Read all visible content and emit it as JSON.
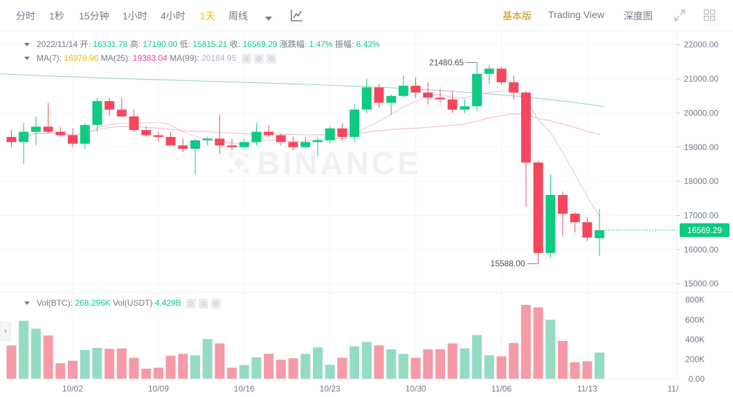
{
  "toolbar": {
    "intervals": [
      {
        "label": "分时",
        "active": false
      },
      {
        "label": "1秒",
        "active": false
      },
      {
        "label": "15分钟",
        "active": false
      },
      {
        "label": "1小时",
        "active": false
      },
      {
        "label": "4小时",
        "active": false
      },
      {
        "label": "1天",
        "active": true
      },
      {
        "label": "周线",
        "active": false
      }
    ],
    "views": [
      {
        "label": "基本版",
        "active": true
      },
      {
        "label": "Trading View",
        "active": false
      },
      {
        "label": "深度图",
        "active": false
      }
    ]
  },
  "legend": {
    "date": "2022/11/14",
    "open_label": "开:",
    "open": "16331.78",
    "high_label": "高:",
    "high": "17190.00",
    "low_label": "低:",
    "low": "15815.21",
    "close_label": "收:",
    "close": "16569.29",
    "change_label": "涨跌幅:",
    "change": "1.47%",
    "amp_label": "振幅:",
    "amp": "8.42%",
    "ma7_label": "MA(7):",
    "ma7": "16978.96",
    "ma25_label": "MA(25):",
    "ma25": "19383.04",
    "ma99_label": "MA(99):",
    "ma99": "20184.95"
  },
  "vol_legend": {
    "btc_label": "Vol(BTC):",
    "btc": "268.296K",
    "usdt_label": "Vol(USDT)",
    "usdt": "4.429B"
  },
  "watermark": "BINANCE",
  "colors": {
    "up": "#0ecb81",
    "down": "#f6465d",
    "ma7": "#f0b90b",
    "ma25": "#eb40b5",
    "ma99": "#b9a4e3"
  },
  "chart_data": {
    "type": "candlestick",
    "x_tick_labels": [
      "10/02",
      "10/09",
      "10/16",
      "10/23",
      "10/30",
      "11/06",
      "11/13",
      "11/"
    ],
    "price_ticks": [
      15000,
      16000,
      17000,
      18000,
      19000,
      20000,
      21000,
      22000
    ],
    "price_tick_labels": [
      "15000.00",
      "16000.00",
      "17000.00",
      "18000.00",
      "19000.00",
      "20000.00",
      "21000.00",
      "22000.00"
    ],
    "ylim": [
      14800,
      22400
    ],
    "vol_ticks": [
      0,
      200,
      400,
      600,
      800
    ],
    "vol_tick_labels": [
      "0.00",
      "200K",
      "400K",
      "600K",
      "800K"
    ],
    "vol_ylim": [
      0,
      840
    ],
    "last_price": "16569.29",
    "max_label": "21480.65",
    "min_label": "15588.00",
    "max_value": 21480.65,
    "min_value": 15588.0,
    "candles": [
      {
        "o": 19300,
        "h": 19500,
        "l": 19000,
        "c": 19150,
        "v": 340
      },
      {
        "o": 19150,
        "h": 19700,
        "l": 18500,
        "c": 19450,
        "v": 590
      },
      {
        "o": 19450,
        "h": 19900,
        "l": 19050,
        "c": 19600,
        "v": 510
      },
      {
        "o": 19600,
        "h": 20300,
        "l": 19400,
        "c": 19450,
        "v": 440
      },
      {
        "o": 19450,
        "h": 19600,
        "l": 19300,
        "c": 19350,
        "v": 160
      },
      {
        "o": 19350,
        "h": 19550,
        "l": 19000,
        "c": 19100,
        "v": 185
      },
      {
        "o": 19100,
        "h": 19700,
        "l": 18950,
        "c": 19650,
        "v": 295
      },
      {
        "o": 19650,
        "h": 20450,
        "l": 19450,
        "c": 20350,
        "v": 315
      },
      {
        "o": 20350,
        "h": 20450,
        "l": 19900,
        "c": 20100,
        "v": 305
      },
      {
        "o": 20100,
        "h": 20450,
        "l": 19900,
        "c": 19900,
        "v": 310
      },
      {
        "o": 19900,
        "h": 20100,
        "l": 19450,
        "c": 19500,
        "v": 215
      },
      {
        "o": 19500,
        "h": 19600,
        "l": 19300,
        "c": 19350,
        "v": 105
      },
      {
        "o": 19350,
        "h": 19450,
        "l": 19150,
        "c": 19300,
        "v": 115
      },
      {
        "o": 19300,
        "h": 19450,
        "l": 19050,
        "c": 19050,
        "v": 235
      },
      {
        "o": 19050,
        "h": 19250,
        "l": 18850,
        "c": 18950,
        "v": 255
      },
      {
        "o": 18950,
        "h": 19250,
        "l": 18200,
        "c": 19200,
        "v": 240
      },
      {
        "o": 19200,
        "h": 19300,
        "l": 19050,
        "c": 19250,
        "v": 405
      },
      {
        "o": 19250,
        "h": 19950,
        "l": 18800,
        "c": 19050,
        "v": 360
      },
      {
        "o": 19050,
        "h": 19250,
        "l": 18900,
        "c": 19000,
        "v": 115
      },
      {
        "o": 19000,
        "h": 19250,
        "l": 18950,
        "c": 19150,
        "v": 140
      },
      {
        "o": 19150,
        "h": 19700,
        "l": 19050,
        "c": 19450,
        "v": 220
      },
      {
        "o": 19450,
        "h": 19650,
        "l": 19300,
        "c": 19350,
        "v": 255
      },
      {
        "o": 19350,
        "h": 19400,
        "l": 19050,
        "c": 19150,
        "v": 195
      },
      {
        "o": 19150,
        "h": 19300,
        "l": 18900,
        "c": 19000,
        "v": 210
      },
      {
        "o": 19000,
        "h": 19300,
        "l": 18950,
        "c": 19150,
        "v": 255
      },
      {
        "o": 19150,
        "h": 19300,
        "l": 18750,
        "c": 19200,
        "v": 320
      },
      {
        "o": 19200,
        "h": 19600,
        "l": 19100,
        "c": 19550,
        "v": 145
      },
      {
        "o": 19550,
        "h": 19700,
        "l": 19200,
        "c": 19300,
        "v": 215
      },
      {
        "o": 19300,
        "h": 20250,
        "l": 19150,
        "c": 20100,
        "v": 330
      },
      {
        "o": 20100,
        "h": 21000,
        "l": 20000,
        "c": 20750,
        "v": 375
      },
      {
        "o": 20750,
        "h": 20850,
        "l": 20150,
        "c": 20300,
        "v": 340
      },
      {
        "o": 20300,
        "h": 20550,
        "l": 19950,
        "c": 20500,
        "v": 300
      },
      {
        "o": 20500,
        "h": 21100,
        "l": 20450,
        "c": 20800,
        "v": 255
      },
      {
        "o": 20800,
        "h": 21050,
        "l": 20450,
        "c": 20600,
        "v": 215
      },
      {
        "o": 20600,
        "h": 20900,
        "l": 20250,
        "c": 20450,
        "v": 300
      },
      {
        "o": 20450,
        "h": 20700,
        "l": 20300,
        "c": 20400,
        "v": 300
      },
      {
        "o": 20400,
        "h": 20650,
        "l": 20000,
        "c": 20100,
        "v": 360
      },
      {
        "o": 20100,
        "h": 20400,
        "l": 20000,
        "c": 20200,
        "v": 310
      },
      {
        "o": 20200,
        "h": 21480.65,
        "l": 20050,
        "c": 21150,
        "v": 445
      },
      {
        "o": 21150,
        "h": 21400,
        "l": 20850,
        "c": 21300,
        "v": 240
      },
      {
        "o": 21300,
        "h": 21350,
        "l": 20850,
        "c": 20900,
        "v": 230
      },
      {
        "o": 20900,
        "h": 21100,
        "l": 20400,
        "c": 20600,
        "v": 365
      },
      {
        "o": 20600,
        "h": 20650,
        "l": 17250,
        "c": 18550,
        "v": 750
      },
      {
        "o": 18550,
        "h": 18600,
        "l": 15588,
        "c": 15900,
        "v": 725
      },
      {
        "o": 15900,
        "h": 18200,
        "l": 15750,
        "c": 17600,
        "v": 600
      },
      {
        "o": 17600,
        "h": 17700,
        "l": 16400,
        "c": 17050,
        "v": 385
      },
      {
        "o": 17050,
        "h": 17100,
        "l": 16500,
        "c": 16800,
        "v": 170
      },
      {
        "o": 16800,
        "h": 16950,
        "l": 16250,
        "c": 16350,
        "v": 180
      },
      {
        "o": 16331.78,
        "h": 17190,
        "l": 15815.21,
        "c": 16569.29,
        "v": 268
      }
    ]
  }
}
